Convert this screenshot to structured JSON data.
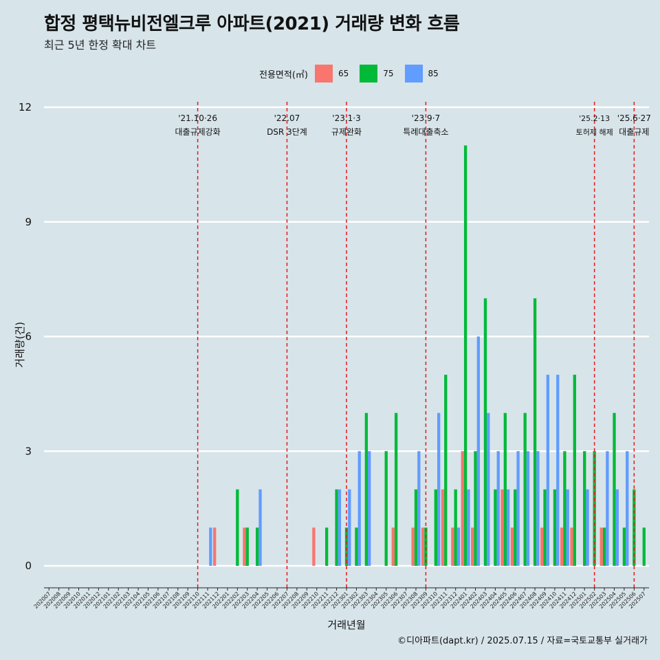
{
  "title": "합정 평택뉴비전엘크루 아파트(2021) 거래량 변화 흐름",
  "subtitle": "최근 5년 한정 확대 차트",
  "footer": "©디아파트(dapt.kr) / 2025.07.15 / 자료=국토교통부 실거래가",
  "legend": {
    "title": "전용면적(㎡)",
    "items": [
      {
        "label": "65",
        "color": "#f8766d"
      },
      {
        "label": "75",
        "color": "#00ba38"
      },
      {
        "label": "85",
        "color": "#619cff"
      }
    ]
  },
  "chart_data": {
    "type": "bar",
    "title": "합정 평택뉴비전엘크루 아파트(2021) 거래량 변화 흐름",
    "subtitle": "최근 5년 한정 확대 차트",
    "xlabel": "거래년월",
    "ylabel": "거래량(건)",
    "ylim": [
      0,
      12
    ],
    "yticks": [
      0,
      3,
      6,
      9,
      12
    ],
    "grid": true,
    "legend_position": "top",
    "categories": [
      "202007",
      "202008",
      "202009",
      "202010",
      "202011",
      "202012",
      "202101",
      "202102",
      "202103",
      "202104",
      "202105",
      "202106",
      "202107",
      "202108",
      "202109",
      "202110",
      "202111",
      "202112",
      "202201",
      "202202",
      "202203",
      "202204",
      "202205",
      "202206",
      "202207",
      "202208",
      "202209",
      "202210",
      "202211",
      "202212",
      "202301",
      "202302",
      "202303",
      "202304",
      "202305",
      "202306",
      "202307",
      "202308",
      "202309",
      "202310",
      "202311",
      "202312",
      "202401",
      "202402",
      "202403",
      "202404",
      "202405",
      "202406",
      "202407",
      "202408",
      "202409",
      "202410",
      "202411",
      "202412",
      "202501",
      "202502",
      "202503",
      "202504",
      "202505",
      "202506",
      "202507"
    ],
    "series": [
      {
        "name": "65",
        "color": "#f8766d",
        "values": [
          0,
          0,
          0,
          0,
          0,
          0,
          0,
          0,
          0,
          0,
          0,
          0,
          0,
          0,
          0,
          0,
          0,
          1,
          0,
          0,
          1,
          0,
          0,
          0,
          0,
          0,
          0,
          1,
          0,
          0,
          0,
          0,
          0,
          0,
          0,
          1,
          0,
          1,
          1,
          0,
          2,
          1,
          3,
          1,
          0,
          0,
          2,
          1,
          0,
          0,
          1,
          0,
          1,
          1,
          0,
          0,
          1,
          0,
          0,
          0,
          0
        ]
      },
      {
        "name": "75",
        "color": "#00ba38",
        "values": [
          0,
          0,
          0,
          0,
          0,
          0,
          0,
          0,
          0,
          0,
          0,
          0,
          0,
          0,
          0,
          0,
          0,
          0,
          0,
          2,
          1,
          1,
          0,
          0,
          0,
          0,
          0,
          0,
          1,
          2,
          1,
          1,
          4,
          0,
          3,
          4,
          0,
          2,
          1,
          2,
          5,
          2,
          11,
          3,
          7,
          2,
          4,
          2,
          4,
          7,
          2,
          2,
          3,
          5,
          3,
          3,
          1,
          4,
          1,
          2,
          1
        ]
      },
      {
        "name": "85",
        "color": "#619cff",
        "values": [
          0,
          0,
          0,
          0,
          0,
          0,
          0,
          0,
          0,
          0,
          0,
          0,
          0,
          0,
          0,
          0,
          1,
          0,
          0,
          0,
          0,
          2,
          0,
          0,
          0,
          0,
          0,
          0,
          0,
          2,
          2,
          3,
          3,
          0,
          0,
          0,
          0,
          3,
          0,
          4,
          0,
          1,
          2,
          6,
          4,
          3,
          2,
          3,
          3,
          3,
          5,
          5,
          2,
          0,
          2,
          0,
          3,
          2,
          3,
          0,
          0
        ]
      }
    ],
    "annotations": [
      {
        "at": "202110",
        "date": "'21.10·26",
        "label": "대출규제강화"
      },
      {
        "at": "202207",
        "date": "'22.07",
        "label": "DSR 3단계"
      },
      {
        "at": "202301",
        "date": "'23.1·3",
        "label": "규제완화"
      },
      {
        "at": "202309",
        "date": "'23.9·7",
        "label": "특례대출축소"
      },
      {
        "at": "202502",
        "date": "'25.2·13",
        "label": "토허제 해제"
      },
      {
        "at": "202506",
        "date": "'25.6·27",
        "label": "대출규제"
      }
    ]
  }
}
